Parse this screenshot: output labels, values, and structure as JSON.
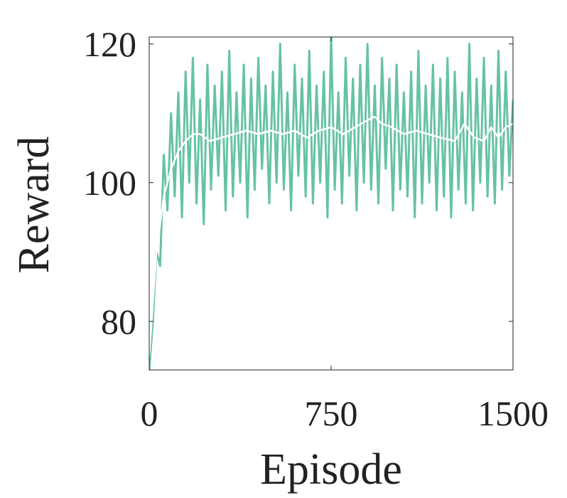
{
  "chart_data": {
    "type": "line",
    "xlabel": "Episode",
    "ylabel": "Reward",
    "xlim": [
      0,
      1500
    ],
    "ylim": [
      73,
      121
    ],
    "xticks": [
      0,
      750,
      1500
    ],
    "yticks": [
      80,
      100,
      120
    ],
    "grid": false,
    "series": [
      {
        "color": "#66c2a5",
        "x": [
          0,
          15,
          30,
          45,
          60,
          75,
          90,
          105,
          120,
          135,
          150,
          165,
          180,
          195,
          210,
          225,
          240,
          255,
          270,
          285,
          300,
          315,
          330,
          345,
          360,
          375,
          390,
          405,
          420,
          435,
          450,
          465,
          480,
          495,
          510,
          525,
          540,
          555,
          570,
          585,
          600,
          615,
          630,
          645,
          660,
          675,
          690,
          705,
          720,
          735,
          750,
          765,
          780,
          795,
          810,
          825,
          840,
          855,
          870,
          885,
          900,
          915,
          930,
          945,
          960,
          975,
          990,
          1005,
          1020,
          1035,
          1050,
          1065,
          1080,
          1095,
          1110,
          1125,
          1140,
          1155,
          1170,
          1185,
          1200,
          1215,
          1230,
          1245,
          1260,
          1275,
          1290,
          1305,
          1320,
          1335,
          1350,
          1365,
          1380,
          1395,
          1410,
          1425,
          1440,
          1455,
          1470,
          1485,
          1500
        ],
        "values": [
          73,
          80,
          90,
          88,
          104,
          96,
          110,
          98,
          113,
          95,
          116,
          100,
          118,
          97,
          112,
          94,
          117,
          99,
          114,
          101,
          116,
          96,
          119,
          98,
          113,
          100,
          117,
          95,
          115,
          99,
          118,
          102,
          114,
          97,
          116,
          100,
          120,
          99,
          113,
          96,
          117,
          101,
          115,
          98,
          119,
          97,
          114,
          100,
          116,
          95,
          121,
          99,
          113,
          97,
          118,
          101,
          115,
          96,
          117,
          100,
          120,
          99,
          114,
          97,
          118,
          102,
          115,
          96,
          117,
          99,
          113,
          98,
          116,
          95,
          119,
          97,
          114,
          100,
          117,
          96,
          115,
          98,
          118,
          95,
          116,
          99,
          113,
          97,
          120,
          96,
          115,
          100,
          118,
          98,
          114,
          97,
          119,
          99,
          116,
          101,
          112
        ]
      },
      {
        "color": "#ffffff",
        "x": [
          0,
          30,
          60,
          90,
          120,
          150,
          180,
          210,
          250,
          300,
          350,
          400,
          450,
          500,
          550,
          600,
          650,
          700,
          750,
          800,
          850,
          900,
          930,
          960,
          1000,
          1050,
          1100,
          1150,
          1200,
          1260,
          1300,
          1340,
          1380,
          1410,
          1440,
          1470,
          1500
        ],
        "values": [
          75,
          90,
          98,
          102,
          104.5,
          106,
          107,
          107,
          106,
          106.5,
          107,
          107.5,
          107,
          107.5,
          107,
          107.5,
          106.5,
          107.5,
          108,
          107,
          108,
          109,
          109.5,
          108.5,
          108,
          107,
          107.5,
          107,
          106.5,
          106,
          108.5,
          106.5,
          106,
          108,
          106.5,
          108,
          108.5
        ]
      }
    ]
  }
}
